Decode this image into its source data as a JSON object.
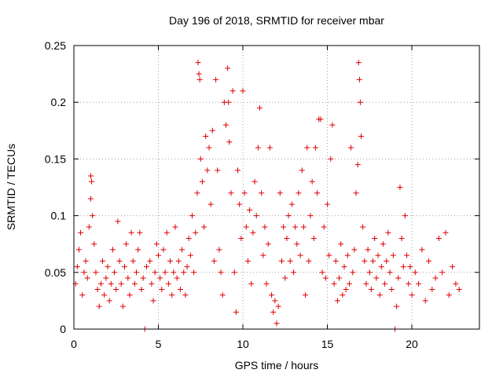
{
  "chart_data": {
    "type": "scatter",
    "title": "Day 196 of 2018, SRMTID for receiver mbar",
    "xlabel": "GPS time / hours",
    "ylabel": "SRMTID / TECUs",
    "xlim": [
      0,
      24
    ],
    "ylim": [
      0,
      0.25
    ],
    "x_ticks": [
      0,
      5,
      10,
      15,
      20
    ],
    "x_tick_labels": [
      "0",
      "5",
      "10",
      "15",
      "20"
    ],
    "y_ticks": [
      0,
      0.05,
      0.1,
      0.15,
      0.2,
      0.25
    ],
    "y_tick_labels": [
      "0",
      "0.05",
      "0.1",
      "0.15",
      "0.2",
      "0.25"
    ],
    "grid": true,
    "marker": "+",
    "color": "#e00000",
    "series": [
      {
        "name": "SRMTID",
        "points": [
          [
            0.1,
            0.04
          ],
          [
            0.2,
            0.055
          ],
          [
            0.3,
            0.07
          ],
          [
            0.4,
            0.085
          ],
          [
            0.5,
            0.03
          ],
          [
            0.6,
            0.05
          ],
          [
            0.7,
            0.06
          ],
          [
            0.8,
            0.045
          ],
          [
            0.9,
            0.09
          ],
          [
            1.0,
            0.115
          ],
          [
            1.0,
            0.135
          ],
          [
            1.05,
            0.13
          ],
          [
            1.1,
            0.1
          ],
          [
            1.2,
            0.075
          ],
          [
            1.3,
            0.05
          ],
          [
            1.4,
            0.035
          ],
          [
            1.5,
            0.02
          ],
          [
            1.6,
            0.04
          ],
          [
            1.7,
            0.06
          ],
          [
            1.8,
            0.03
          ],
          [
            1.9,
            0.045
          ],
          [
            2.0,
            0.055
          ],
          [
            2.1,
            0.025
          ],
          [
            2.2,
            0.04
          ],
          [
            2.3,
            0.07
          ],
          [
            2.4,
            0.05
          ],
          [
            2.5,
            0.035
          ],
          [
            2.6,
            0.095
          ],
          [
            2.7,
            0.06
          ],
          [
            2.8,
            0.04
          ],
          [
            2.9,
            0.02
          ],
          [
            3.0,
            0.055
          ],
          [
            3.1,
            0.075
          ],
          [
            3.2,
            0.045
          ],
          [
            3.3,
            0.03
          ],
          [
            3.4,
            0.085
          ],
          [
            3.5,
            0.06
          ],
          [
            3.6,
            0.04
          ],
          [
            3.7,
            0.05
          ],
          [
            3.8,
            0.07
          ],
          [
            3.9,
            0.085
          ],
          [
            4.0,
            0.035
          ],
          [
            4.1,
            0.045
          ],
          [
            4.2,
            0.0
          ],
          [
            4.3,
            0.055
          ],
          [
            4.5,
            0.06
          ],
          [
            4.6,
            0.04
          ],
          [
            4.7,
            0.025
          ],
          [
            4.8,
            0.05
          ],
          [
            4.9,
            0.075
          ],
          [
            5.0,
            0.065
          ],
          [
            5.1,
            0.045
          ],
          [
            5.2,
            0.035
          ],
          [
            5.3,
            0.07
          ],
          [
            5.4,
            0.05
          ],
          [
            5.5,
            0.085
          ],
          [
            5.6,
            0.04
          ],
          [
            5.7,
            0.06
          ],
          [
            5.8,
            0.03
          ],
          [
            5.9,
            0.05
          ],
          [
            6.0,
            0.09
          ],
          [
            6.1,
            0.045
          ],
          [
            6.2,
            0.06
          ],
          [
            6.3,
            0.035
          ],
          [
            6.4,
            0.07
          ],
          [
            6.5,
            0.05
          ],
          [
            6.6,
            0.03
          ],
          [
            6.7,
            0.055
          ],
          [
            6.8,
            0.08
          ],
          [
            6.9,
            0.065
          ],
          [
            7.0,
            0.1
          ],
          [
            7.1,
            0.05
          ],
          [
            7.2,
            0.085
          ],
          [
            7.3,
            0.12
          ],
          [
            7.35,
            0.235
          ],
          [
            7.4,
            0.225
          ],
          [
            7.45,
            0.22
          ],
          [
            7.5,
            0.15
          ],
          [
            7.6,
            0.13
          ],
          [
            7.7,
            0.09
          ],
          [
            7.8,
            0.17
          ],
          [
            7.9,
            0.14
          ],
          [
            8.0,
            0.16
          ],
          [
            8.1,
            0.11
          ],
          [
            8.2,
            0.175
          ],
          [
            8.3,
            0.06
          ],
          [
            8.4,
            0.22
          ],
          [
            8.5,
            0.14
          ],
          [
            8.6,
            0.07
          ],
          [
            8.7,
            0.05
          ],
          [
            8.8,
            0.03
          ],
          [
            8.9,
            0.2
          ],
          [
            9.0,
            0.18
          ],
          [
            9.1,
            0.23
          ],
          [
            9.15,
            0.2
          ],
          [
            9.2,
            0.165
          ],
          [
            9.3,
            0.12
          ],
          [
            9.4,
            0.21
          ],
          [
            9.5,
            0.05
          ],
          [
            9.6,
            0.015
          ],
          [
            9.7,
            0.14
          ],
          [
            9.8,
            0.11
          ],
          [
            9.9,
            0.08
          ],
          [
            10.0,
            0.21
          ],
          [
            10.1,
            0.12
          ],
          [
            10.2,
            0.09
          ],
          [
            10.3,
            0.06
          ],
          [
            10.4,
            0.105
          ],
          [
            10.5,
            0.04
          ],
          [
            10.6,
            0.085
          ],
          [
            10.7,
            0.13
          ],
          [
            10.8,
            0.1
          ],
          [
            10.9,
            0.16
          ],
          [
            11.0,
            0.195
          ],
          [
            11.1,
            0.12
          ],
          [
            11.2,
            0.065
          ],
          [
            11.3,
            0.09
          ],
          [
            11.4,
            0.04
          ],
          [
            11.5,
            0.075
          ],
          [
            11.6,
            0.16
          ],
          [
            11.7,
            0.03
          ],
          [
            11.8,
            0.015
          ],
          [
            11.9,
            0.025
          ],
          [
            12.0,
            0.005
          ],
          [
            12.1,
            0.02
          ],
          [
            12.2,
            0.12
          ],
          [
            12.3,
            0.06
          ],
          [
            12.4,
            0.09
          ],
          [
            12.5,
            0.045
          ],
          [
            12.6,
            0.08
          ],
          [
            12.7,
            0.1
          ],
          [
            12.8,
            0.06
          ],
          [
            12.9,
            0.11
          ],
          [
            13.0,
            0.05
          ],
          [
            13.1,
            0.09
          ],
          [
            13.2,
            0.075
          ],
          [
            13.3,
            0.12
          ],
          [
            13.4,
            0.065
          ],
          [
            13.5,
            0.14
          ],
          [
            13.6,
            0.09
          ],
          [
            13.7,
            0.03
          ],
          [
            13.8,
            0.16
          ],
          [
            13.9,
            0.06
          ],
          [
            14.0,
            0.1
          ],
          [
            14.1,
            0.13
          ],
          [
            14.2,
            0.08
          ],
          [
            14.3,
            0.16
          ],
          [
            14.4,
            0.12
          ],
          [
            14.5,
            0.185
          ],
          [
            14.6,
            0.185
          ],
          [
            14.7,
            0.05
          ],
          [
            14.8,
            0.09
          ],
          [
            14.9,
            0.045
          ],
          [
            15.0,
            0.11
          ],
          [
            15.1,
            0.065
          ],
          [
            15.2,
            0.15
          ],
          [
            15.3,
            0.18
          ],
          [
            15.4,
            0.04
          ],
          [
            15.5,
            0.06
          ],
          [
            15.6,
            0.025
          ],
          [
            15.7,
            0.045
          ],
          [
            15.8,
            0.075
          ],
          [
            15.9,
            0.03
          ],
          [
            16.0,
            0.055
          ],
          [
            16.1,
            0.035
          ],
          [
            16.2,
            0.065
          ],
          [
            16.3,
            0.04
          ],
          [
            16.4,
            0.16
          ],
          [
            16.5,
            0.05
          ],
          [
            16.6,
            0.07
          ],
          [
            16.7,
            0.12
          ],
          [
            16.8,
            0.145
          ],
          [
            16.85,
            0.235
          ],
          [
            16.9,
            0.22
          ],
          [
            16.95,
            0.2
          ],
          [
            17.0,
            0.17
          ],
          [
            17.1,
            0.09
          ],
          [
            17.2,
            0.06
          ],
          [
            17.3,
            0.04
          ],
          [
            17.4,
            0.07
          ],
          [
            17.5,
            0.05
          ],
          [
            17.6,
            0.035
          ],
          [
            17.7,
            0.06
          ],
          [
            17.8,
            0.08
          ],
          [
            17.9,
            0.045
          ],
          [
            18.0,
            0.065
          ],
          [
            18.1,
            0.03
          ],
          [
            18.2,
            0.055
          ],
          [
            18.3,
            0.075
          ],
          [
            18.4,
            0.04
          ],
          [
            18.5,
            0.06
          ],
          [
            18.6,
            0.085
          ],
          [
            18.7,
            0.05
          ],
          [
            18.8,
            0.035
          ],
          [
            18.9,
            0.065
          ],
          [
            19.0,
            0.0
          ],
          [
            19.1,
            0.02
          ],
          [
            19.2,
            0.045
          ],
          [
            19.3,
            0.125
          ],
          [
            19.4,
            0.08
          ],
          [
            19.5,
            0.055
          ],
          [
            19.6,
            0.1
          ],
          [
            19.7,
            0.065
          ],
          [
            19.8,
            0.04
          ],
          [
            19.9,
            0.055
          ],
          [
            20.0,
            0.03
          ],
          [
            20.2,
            0.05
          ],
          [
            20.4,
            0.04
          ],
          [
            20.6,
            0.07
          ],
          [
            20.8,
            0.025
          ],
          [
            21.0,
            0.06
          ],
          [
            21.2,
            0.035
          ],
          [
            21.4,
            0.045
          ],
          [
            21.6,
            0.08
          ],
          [
            21.8,
            0.05
          ],
          [
            22.0,
            0.085
          ],
          [
            22.2,
            0.03
          ],
          [
            22.4,
            0.055
          ],
          [
            22.6,
            0.04
          ],
          [
            22.8,
            0.035
          ]
        ]
      }
    ]
  }
}
